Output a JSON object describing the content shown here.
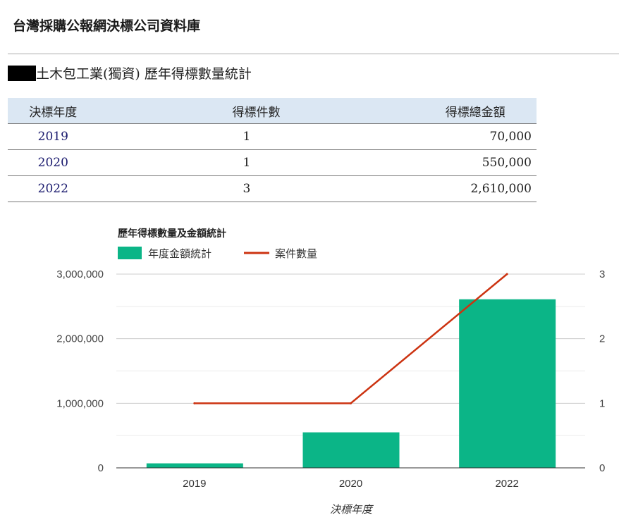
{
  "site_title": "台灣採購公報網決標公司資料庫",
  "company_name_suffix": "土木包工業(獨資)",
  "page_heading": "歷年得標數量統計",
  "table": {
    "headers": [
      "決標年度",
      "得標件數",
      "得標總金額"
    ],
    "rows": [
      [
        "2019",
        "1",
        "70,000"
      ],
      [
        "2020",
        "1",
        "550,000"
      ],
      [
        "2022",
        "3",
        "2,610,000"
      ]
    ]
  },
  "chart_data": {
    "type": "bar+line",
    "title": "歷年得標數量及金額統計",
    "xlabel": "決標年度",
    "categories": [
      "2019",
      "2020",
      "2022"
    ],
    "series": [
      {
        "name": "年度金額統計",
        "type": "bar",
        "axis": "left",
        "values": [
          70000,
          550000,
          2610000
        ],
        "color": "#0bb587"
      },
      {
        "name": "案件數量",
        "type": "line",
        "axis": "right",
        "values": [
          1,
          1,
          3
        ],
        "color": "#cc3311"
      }
    ],
    "left_ylim": [
      0,
      3000000
    ],
    "left_ticks": [
      "0",
      "1,000,000",
      "2,000,000",
      "3,000,000"
    ],
    "right_ylim": [
      0,
      3
    ],
    "right_ticks": [
      "0",
      "1",
      "2",
      "3"
    ],
    "legend": "top-left"
  }
}
